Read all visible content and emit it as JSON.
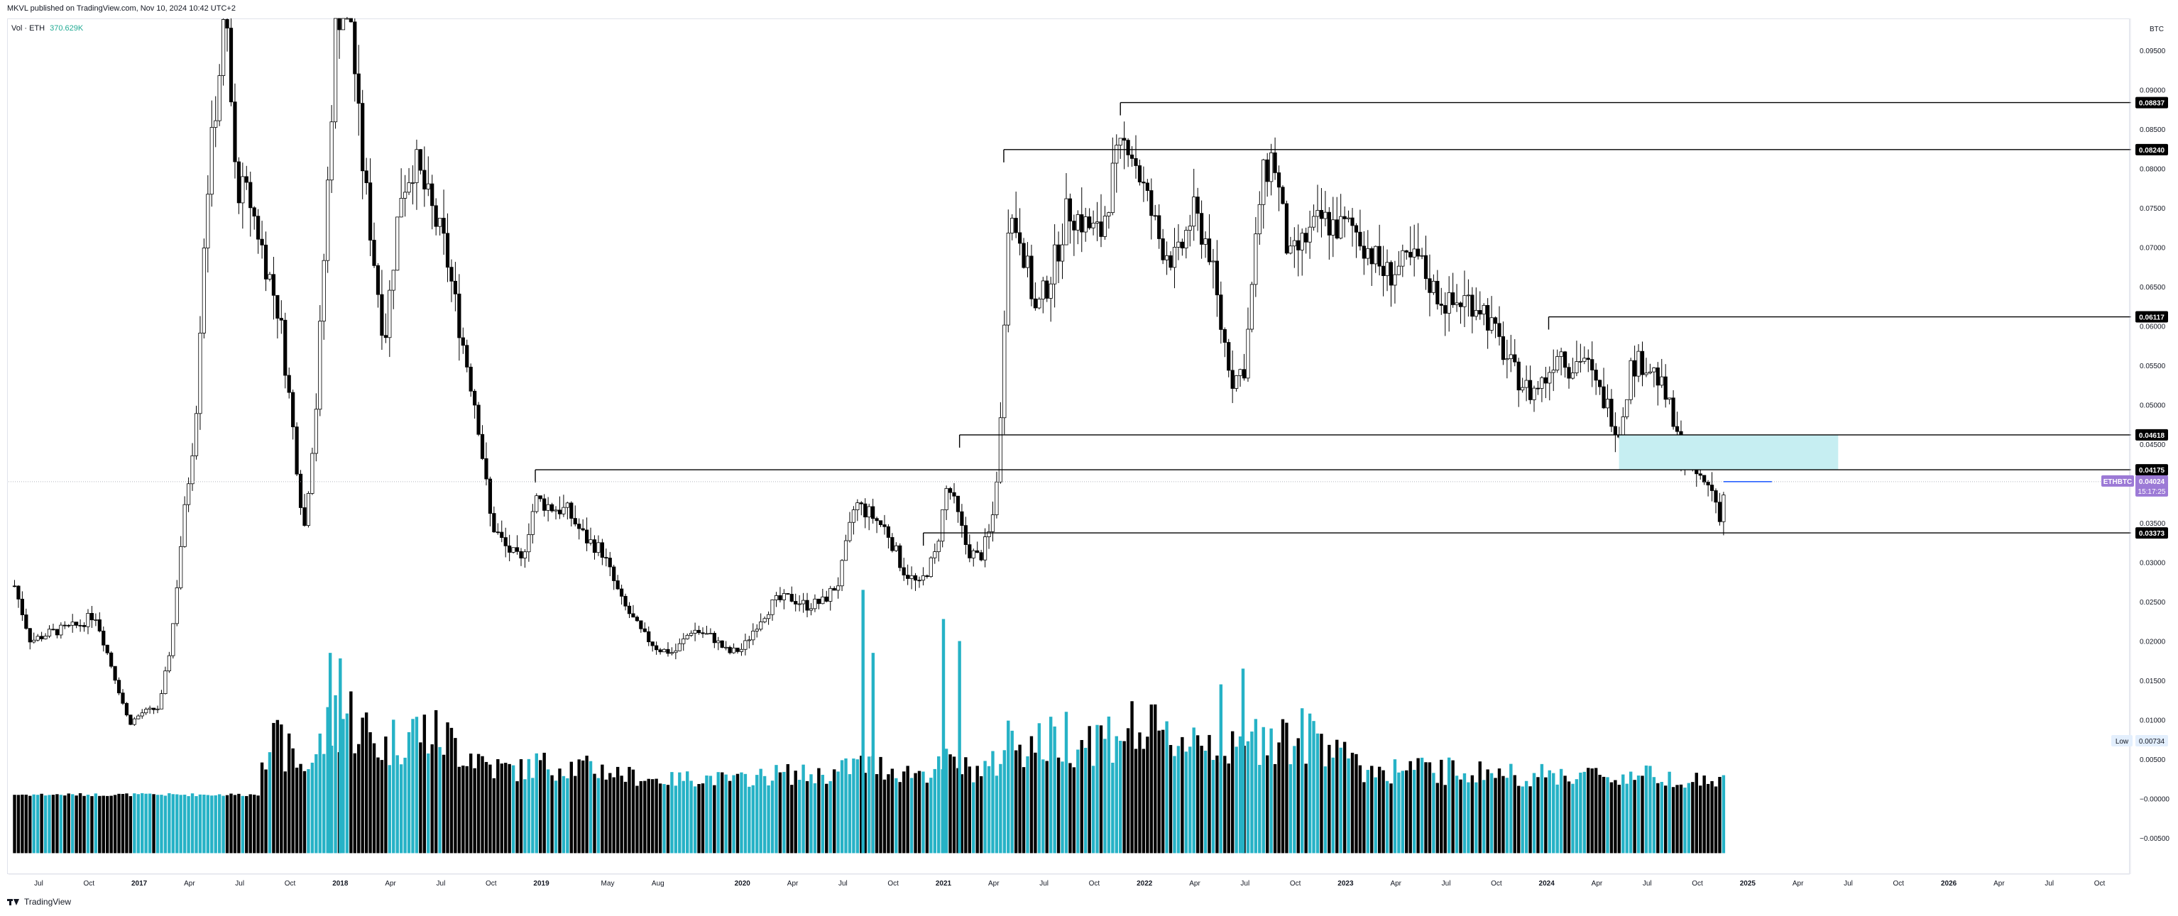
{
  "header": {
    "published": "MKVL published on TradingView.com, Nov 10, 2024 10:42 UTC+2"
  },
  "volume_legend": {
    "label": "Vol · ETH",
    "value": "370.629K"
  },
  "footer": {
    "brand": "TradingView"
  },
  "colors": {
    "up": "#26b2c6",
    "down": "#000000",
    "zone": "#c6eef2",
    "grid": "#e0e3eb",
    "symbol_tag": "#9c7ad6"
  },
  "chart_data": {
    "type": "candlestick",
    "currency_label": "BTC",
    "y_ticks": [
      "0.09500",
      "0.09000",
      "0.08500",
      "0.08000",
      "0.07500",
      "0.07000",
      "0.06500",
      "0.06000",
      "0.05500",
      "0.05000",
      "0.04500",
      "0.04000",
      "0.03500",
      "0.03000",
      "0.02500",
      "0.02000",
      "0.01500",
      "0.01000",
      "0.00500",
      "−0.00000",
      "−0.00500"
    ],
    "y_tick_values": [
      0.095,
      0.09,
      0.085,
      0.08,
      0.075,
      0.07,
      0.065,
      0.06,
      0.055,
      0.05,
      0.045,
      0.04,
      0.035,
      0.03,
      0.025,
      0.02,
      0.015,
      0.01,
      0.005,
      0.0,
      -0.005
    ],
    "x_ticks": [
      "Jul",
      "Oct",
      "2017",
      "Apr",
      "Jul",
      "Oct",
      "2018",
      "Apr",
      "Jul",
      "Oct",
      "2019",
      "May",
      "Aug",
      "2020",
      "Apr",
      "Jul",
      "Oct",
      "2021",
      "Apr",
      "Jul",
      "Oct",
      "2022",
      "Apr",
      "Jul",
      "Oct",
      "2023",
      "Apr",
      "Jul",
      "Oct",
      "2024",
      "Apr",
      "Jul",
      "Oct",
      "2025",
      "Apr",
      "Jul",
      "Oct",
      "2026",
      "Apr",
      "Jul",
      "Oct"
    ],
    "x_tick_times": [
      2016.5,
      2016.75,
      2017.0,
      2017.25,
      2017.5,
      2017.75,
      2018.0,
      2018.25,
      2018.5,
      2018.75,
      2019.0,
      2019.33,
      2019.58,
      2020.0,
      2020.25,
      2020.5,
      2020.75,
      2021.0,
      2021.25,
      2021.5,
      2021.75,
      2022.0,
      2022.25,
      2022.5,
      2022.75,
      2023.0,
      2023.25,
      2023.5,
      2023.75,
      2024.0,
      2024.25,
      2024.5,
      2024.75,
      2025.0,
      2025.25,
      2025.5,
      2025.75,
      2026.0,
      2026.25,
      2026.5,
      2026.75
    ],
    "price_levels": [
      {
        "label": "0.08837",
        "value": 0.08837,
        "from": 2021.88
      },
      {
        "label": "0.08240",
        "value": 0.0824,
        "from": 2021.3
      },
      {
        "label": "0.06117",
        "value": 0.06117,
        "from": 2024.01
      },
      {
        "label": "0.04618",
        "value": 0.04618,
        "from": 2021.08
      },
      {
        "label": "0.04175",
        "value": 0.04175,
        "from": 2018.97
      },
      {
        "label": "0.03373",
        "value": 0.03373,
        "from": 2020.9
      }
    ],
    "zone": {
      "t_start": 2024.36,
      "t_end": 2025.45,
      "top": 0.04618,
      "bottom": 0.04175
    },
    "current_price": {
      "value": 0.04024,
      "symbol": "ETHBTC",
      "label": "0.04024",
      "countdown": "15:17:25"
    },
    "low_marker": {
      "label": "Low",
      "value_label": "0.00734",
      "value": 0.00734
    },
    "close_path": [
      [
        2016.38,
        0.027
      ],
      [
        2016.46,
        0.02
      ],
      [
        2016.55,
        0.021
      ],
      [
        2016.62,
        0.0215
      ],
      [
        2016.7,
        0.022
      ],
      [
        2016.78,
        0.0235
      ],
      [
        2016.86,
        0.017
      ],
      [
        2016.95,
        0.0095
      ],
      [
        2017.02,
        0.011
      ],
      [
        2017.1,
        0.0115
      ],
      [
        2017.16,
        0.02
      ],
      [
        2017.21,
        0.033
      ],
      [
        2017.28,
        0.048
      ],
      [
        2017.33,
        0.075
      ],
      [
        2017.38,
        0.088
      ],
      [
        2017.43,
        0.1
      ],
      [
        2017.48,
        0.078
      ],
      [
        2017.55,
        0.076
      ],
      [
        2017.62,
        0.069
      ],
      [
        2017.7,
        0.061
      ],
      [
        2017.76,
        0.048
      ],
      [
        2017.82,
        0.034
      ],
      [
        2017.88,
        0.05
      ],
      [
        2017.93,
        0.074
      ],
      [
        2017.98,
        0.1
      ],
      [
        2018.05,
        0.1
      ],
      [
        2018.1,
        0.083
      ],
      [
        2018.16,
        0.07
      ],
      [
        2018.22,
        0.058
      ],
      [
        2018.3,
        0.077
      ],
      [
        2018.37,
        0.081
      ],
      [
        2018.45,
        0.075
      ],
      [
        2018.52,
        0.07
      ],
      [
        2018.6,
        0.059
      ],
      [
        2018.68,
        0.049
      ],
      [
        2018.75,
        0.035
      ],
      [
        2018.82,
        0.032
      ],
      [
        2018.9,
        0.03
      ],
      [
        2018.97,
        0.038
      ],
      [
        2019.05,
        0.037
      ],
      [
        2019.13,
        0.0365
      ],
      [
        2019.22,
        0.033
      ],
      [
        2019.3,
        0.0315
      ],
      [
        2019.4,
        0.025
      ],
      [
        2019.5,
        0.021
      ],
      [
        2019.58,
        0.019
      ],
      [
        2019.66,
        0.0185
      ],
      [
        2019.75,
        0.0215
      ],
      [
        2019.85,
        0.0205
      ],
      [
        2019.93,
        0.0185
      ],
      [
        2020.0,
        0.019
      ],
      [
        2020.08,
        0.0225
      ],
      [
        2020.16,
        0.025
      ],
      [
        2020.24,
        0.0255
      ],
      [
        2020.32,
        0.0245
      ],
      [
        2020.4,
        0.025
      ],
      [
        2020.48,
        0.0275
      ],
      [
        2020.56,
        0.0375
      ],
      [
        2020.64,
        0.036
      ],
      [
        2020.72,
        0.034
      ],
      [
        2020.8,
        0.029
      ],
      [
        2020.88,
        0.027
      ],
      [
        2020.96,
        0.031
      ],
      [
        2021.02,
        0.04
      ],
      [
        2021.07,
        0.036
      ],
      [
        2021.12,
        0.0315
      ],
      [
        2021.18,
        0.0305
      ],
      [
        2021.24,
        0.0345
      ],
      [
        2021.28,
        0.045
      ],
      [
        2021.32,
        0.074
      ],
      [
        2021.38,
        0.072
      ],
      [
        2021.46,
        0.0615
      ],
      [
        2021.54,
        0.067
      ],
      [
        2021.62,
        0.075
      ],
      [
        2021.7,
        0.073
      ],
      [
        2021.78,
        0.0715
      ],
      [
        2021.85,
        0.08
      ],
      [
        2021.92,
        0.084
      ],
      [
        2022.0,
        0.077
      ],
      [
        2022.08,
        0.0705
      ],
      [
        2022.16,
        0.068
      ],
      [
        2022.24,
        0.0745
      ],
      [
        2022.32,
        0.07
      ],
      [
        2022.38,
        0.06
      ],
      [
        2022.44,
        0.053
      ],
      [
        2022.5,
        0.055
      ],
      [
        2022.58,
        0.078
      ],
      [
        2022.64,
        0.082
      ],
      [
        2022.72,
        0.068
      ],
      [
        2022.8,
        0.071
      ],
      [
        2022.88,
        0.0735
      ],
      [
        2022.96,
        0.0725
      ],
      [
        2023.04,
        0.0725
      ],
      [
        2023.12,
        0.0695
      ],
      [
        2023.2,
        0.0665
      ],
      [
        2023.28,
        0.0675
      ],
      [
        2023.36,
        0.0685
      ],
      [
        2023.44,
        0.0645
      ],
      [
        2023.52,
        0.0625
      ],
      [
        2023.6,
        0.0635
      ],
      [
        2023.68,
        0.0625
      ],
      [
        2023.76,
        0.058
      ],
      [
        2023.84,
        0.054
      ],
      [
        2023.92,
        0.0515
      ],
      [
        2024.0,
        0.0535
      ],
      [
        2024.06,
        0.0575
      ],
      [
        2024.12,
        0.0545
      ],
      [
        2024.18,
        0.0565
      ],
      [
        2024.24,
        0.0525
      ],
      [
        2024.3,
        0.05
      ],
      [
        2024.36,
        0.0465
      ],
      [
        2024.42,
        0.055
      ],
      [
        2024.48,
        0.0555
      ],
      [
        2024.54,
        0.054
      ],
      [
        2024.6,
        0.0505
      ],
      [
        2024.66,
        0.0445
      ],
      [
        2024.72,
        0.042
      ],
      [
        2024.78,
        0.04
      ],
      [
        2024.82,
        0.0395
      ],
      [
        2024.86,
        0.036
      ],
      [
        2024.88,
        0.0385
      ]
    ],
    "volume_highlights": [
      {
        "t": 2017.95,
        "v": 0.0185
      },
      {
        "t": 2018.0,
        "v": 0.0178
      },
      {
        "t": 2020.6,
        "v": 0.0265
      },
      {
        "t": 2020.65,
        "v": 0.0185
      },
      {
        "t": 2021.0,
        "v": 0.0228
      },
      {
        "t": 2021.08,
        "v": 0.02
      },
      {
        "t": 2022.49,
        "v": 0.0165
      },
      {
        "t": 2022.38,
        "v": 0.0145
      }
    ]
  }
}
